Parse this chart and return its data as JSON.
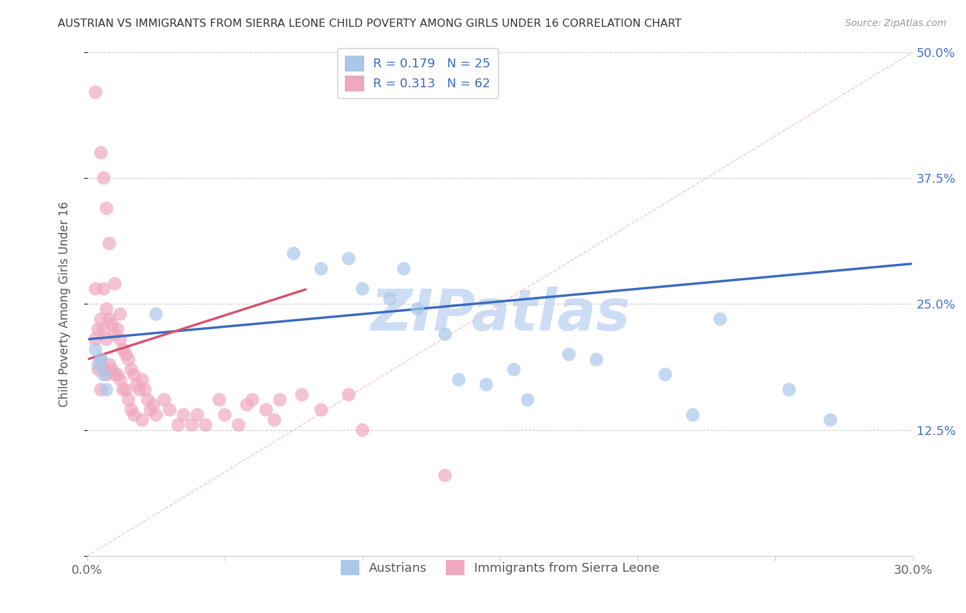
{
  "title": "AUSTRIAN VS IMMIGRANTS FROM SIERRA LEONE CHILD POVERTY AMONG GIRLS UNDER 16 CORRELATION CHART",
  "source": "Source: ZipAtlas.com",
  "ylabel": "Child Poverty Among Girls Under 16",
  "xlim": [
    0.0,
    0.3
  ],
  "ylim": [
    0.0,
    0.5
  ],
  "xticks": [
    0.0,
    0.05,
    0.1,
    0.15,
    0.2,
    0.25,
    0.3
  ],
  "xtick_labels": [
    "0.0%",
    "",
    "",
    "",
    "",
    "",
    "30.0%"
  ],
  "yticks": [
    0.0,
    0.125,
    0.25,
    0.375,
    0.5
  ],
  "ytick_labels_right": [
    "",
    "12.5%",
    "25.0%",
    "37.5%",
    "50.0%"
  ],
  "legend_r1": "R = 0.179",
  "legend_n1": "N = 25",
  "legend_r2": "R = 0.313",
  "legend_n2": "N = 62",
  "color_austrians": "#aac8ea",
  "color_sierra_leone": "#f0a8be",
  "color_line_austrians": "#3a6bbf",
  "color_line_sierra_leone": "#d9506a",
  "watermark": "ZIPatlas",
  "watermark_color": "#ccddf5",
  "background_color": "#ffffff",
  "aus_line_x0": 0.0,
  "aus_line_y0": 0.215,
  "aus_line_x1": 0.3,
  "aus_line_y1": 0.29,
  "sl_line_x0": 0.0,
  "sl_line_y0": 0.195,
  "sl_line_x1": 0.08,
  "sl_line_y1": 0.265,
  "austrians_x": [
    0.003,
    0.004,
    0.005,
    0.006,
    0.007,
    0.025,
    0.075,
    0.085,
    0.095,
    0.1,
    0.11,
    0.115,
    0.12,
    0.13,
    0.135,
    0.145,
    0.155,
    0.16,
    0.175,
    0.185,
    0.21,
    0.22,
    0.23,
    0.255,
    0.27
  ],
  "austrians_y": [
    0.205,
    0.19,
    0.195,
    0.18,
    0.165,
    0.24,
    0.3,
    0.285,
    0.295,
    0.265,
    0.255,
    0.285,
    0.245,
    0.22,
    0.175,
    0.17,
    0.185,
    0.155,
    0.2,
    0.195,
    0.18,
    0.14,
    0.235,
    0.165,
    0.135
  ],
  "sierra_leone_x": [
    0.003,
    0.003,
    0.004,
    0.004,
    0.005,
    0.005,
    0.005,
    0.006,
    0.006,
    0.006,
    0.007,
    0.007,
    0.007,
    0.008,
    0.008,
    0.009,
    0.009,
    0.01,
    0.01,
    0.011,
    0.011,
    0.012,
    0.012,
    0.013,
    0.013,
    0.014,
    0.014,
    0.015,
    0.015,
    0.016,
    0.016,
    0.017,
    0.017,
    0.018,
    0.019,
    0.02,
    0.02,
    0.021,
    0.022,
    0.023,
    0.024,
    0.025,
    0.028,
    0.03,
    0.033,
    0.035,
    0.038,
    0.04,
    0.043,
    0.048,
    0.05,
    0.055,
    0.058,
    0.06,
    0.065,
    0.068,
    0.07,
    0.078,
    0.085,
    0.095,
    0.1,
    0.13
  ],
  "sierra_leone_y": [
    0.265,
    0.215,
    0.225,
    0.185,
    0.235,
    0.195,
    0.165,
    0.265,
    0.225,
    0.185,
    0.245,
    0.215,
    0.18,
    0.235,
    0.19,
    0.23,
    0.185,
    0.22,
    0.18,
    0.225,
    0.18,
    0.215,
    0.175,
    0.205,
    0.165,
    0.2,
    0.165,
    0.195,
    0.155,
    0.185,
    0.145,
    0.18,
    0.14,
    0.17,
    0.165,
    0.175,
    0.135,
    0.165,
    0.155,
    0.145,
    0.15,
    0.14,
    0.155,
    0.145,
    0.13,
    0.14,
    0.13,
    0.14,
    0.13,
    0.155,
    0.14,
    0.13,
    0.15,
    0.155,
    0.145,
    0.135,
    0.155,
    0.16,
    0.145,
    0.16,
    0.125,
    0.08
  ],
  "sierra_leone_high_x": [
    0.003,
    0.005,
    0.006,
    0.007,
    0.008,
    0.01,
    0.012
  ],
  "sierra_leone_high_y": [
    0.46,
    0.4,
    0.375,
    0.345,
    0.31,
    0.27,
    0.24
  ]
}
